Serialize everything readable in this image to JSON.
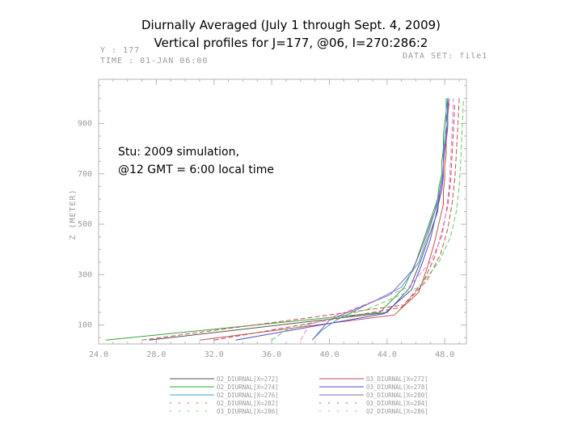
{
  "title_line1": "Diurnally Averaged (July 1 through Sept. 4, 2009)",
  "title_line2": "Vertical profiles for J=177, @06, I=270:286:2",
  "header": {
    "y_label": "Y : 177",
    "time_label": "TIME : 01-JAN 06:00",
    "dataset_label": "DATA SET: file1"
  },
  "annotation": {
    "line1": "Stu: 2009 simulation,",
    "line2": "@12 GMT = 6:00 local time"
  },
  "chart_data": {
    "type": "line",
    "xlabel": "",
    "ylabel": "Z (METER)",
    "xlim": [
      24.0,
      49.5
    ],
    "ylim": [
      25,
      1075
    ],
    "x_ticks": [
      24.0,
      28.0,
      32.0,
      36.0,
      40.0,
      44.0,
      48.0
    ],
    "x_tick_labels": [
      "24.0",
      "28.0",
      "32.0",
      "36.0",
      "40.0",
      "44.0",
      "48.0"
    ],
    "y_ticks": [
      100,
      300,
      500,
      700,
      900
    ],
    "y_tick_labels": [
      "100",
      "300",
      "500",
      "700",
      "900"
    ],
    "grid": false,
    "legend_position": "bottom",
    "series": [
      {
        "name": "O2_DIURNAL[X=272]",
        "color": "#555555",
        "dash": "solid",
        "x": [
          27.5,
          44.0,
          45.6,
          46.3,
          46.9,
          47.5,
          47.6,
          47.7,
          47.9,
          47.9,
          48.0,
          48.1,
          48.1,
          48.2,
          48.2
        ],
        "y": [
          40,
          150,
          250,
          350,
          450,
          550,
          600,
          650,
          700,
          750,
          800,
          850,
          900,
          950,
          1000
        ]
      },
      {
        "name": "O3_DIURNAL[X=272]",
        "color": "#c0504d",
        "dash": "solid",
        "x": [
          31.0,
          44.5,
          46.2,
          46.8,
          47.3,
          47.7,
          47.9,
          47.9,
          48.0,
          48.0,
          48.1,
          48.1,
          48.2,
          48.2,
          48.3
        ],
        "y": [
          40,
          140,
          230,
          330,
          430,
          530,
          580,
          630,
          680,
          730,
          780,
          830,
          880,
          930,
          980
        ]
      },
      {
        "name": "O2_DIURNAL[X=274]",
        "color": "#3aa13a",
        "dash": "solid",
        "x": [
          24.5,
          43.5,
          45.2,
          46.0,
          46.6,
          47.2,
          47.5,
          47.6,
          47.8,
          47.8,
          47.9,
          47.9,
          48.0,
          48.1,
          48.1
        ],
        "y": [
          40,
          150,
          250,
          350,
          450,
          550,
          600,
          650,
          700,
          750,
          800,
          850,
          900,
          950,
          1000
        ]
      },
      {
        "name": "O3_DIURNAL[X=278]",
        "color": "#4a4ad0",
        "dash": "solid",
        "x": [
          33.5,
          43.8,
          45.7,
          46.4,
          47.0,
          47.4,
          47.6,
          47.8,
          47.9,
          47.9,
          48.0,
          48.1,
          48.2,
          48.2,
          48.2
        ],
        "y": [
          40,
          145,
          240,
          340,
          440,
          540,
          590,
          640,
          690,
          740,
          790,
          840,
          890,
          940,
          990
        ]
      },
      {
        "name": "O2_DIURNAL[X=276]",
        "color": "#40a0d0",
        "dash": "solid",
        "x": [
          38.8,
          39.5,
          40.5,
          45.0,
          46.2,
          46.8,
          47.3,
          47.6,
          47.8,
          47.9,
          47.9,
          48.0,
          48.1,
          48.1,
          48.2
        ],
        "y": [
          40,
          80,
          120,
          250,
          350,
          450,
          550,
          620,
          680,
          730,
          780,
          840,
          890,
          950,
          1000
        ]
      },
      {
        "name": "O3_DIURNAL[X=280]",
        "color": "#9060b0",
        "dash": "solid",
        "x": [
          38.8,
          40.0,
          44.2,
          45.8,
          46.5,
          47.1,
          47.5,
          47.7,
          47.9,
          47.9,
          48.0,
          48.1,
          48.2,
          48.2,
          48.3
        ],
        "y": [
          40,
          120,
          220,
          320,
          420,
          520,
          580,
          640,
          700,
          750,
          800,
          850,
          900,
          950,
          1000
        ]
      },
      {
        "name": "O2_DIURNAL[X=282]",
        "color": "#c0504d",
        "dash": "dash",
        "x": [
          27.0,
          45.2,
          46.8,
          47.7,
          48.2,
          48.5,
          48.7,
          48.8,
          48.9,
          49.0
        ],
        "y": [
          40,
          180,
          280,
          380,
          480,
          580,
          680,
          780,
          880,
          1000
        ]
      },
      {
        "name": "O3_DIURNAL[X=284]",
        "color": "#c0504d",
        "dash": "dash",
        "x": [
          32.0,
          45.0,
          46.5,
          47.3,
          47.8,
          48.2,
          48.4,
          48.5,
          48.6,
          48.7
        ],
        "y": [
          40,
          170,
          270,
          370,
          470,
          570,
          670,
          770,
          870,
          980
        ]
      },
      {
        "name": "O3_DIURNAL[X=286]",
        "color": "#66cc66",
        "dash": "dash",
        "x": [
          36.0,
          37.0,
          42.5,
          46.2,
          47.6,
          48.4,
          48.8,
          49.0,
          49.1,
          49.2,
          49.3
        ],
        "y": [
          40,
          80,
          160,
          250,
          350,
          450,
          550,
          650,
          750,
          870,
          1000
        ]
      },
      {
        "name": "O2_DIURNAL[X=286]",
        "color": "#e080e0",
        "dash": "dash",
        "x": [
          38.0,
          38.6,
          41.5,
          45.5,
          47.0,
          47.8,
          48.1,
          48.3,
          48.4,
          48.5,
          48.6
        ],
        "y": [
          40,
          100,
          160,
          250,
          350,
          450,
          550,
          650,
          750,
          870,
          1000
        ]
      }
    ]
  }
}
